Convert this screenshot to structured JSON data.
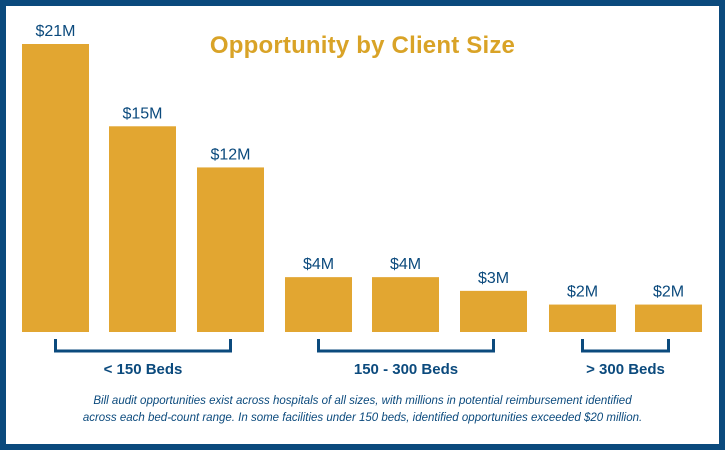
{
  "colors": {
    "frame": "#0b4a7d",
    "bar": "#e2a631",
    "title": "#d9a327",
    "text": "#0b4a7d"
  },
  "chart_data": {
    "type": "bar",
    "title": "Opportunity by Client Size",
    "xlabel": "",
    "ylabel": "",
    "unit": "$M",
    "ylim": [
      0,
      21
    ],
    "grid": false,
    "values": [
      21,
      15,
      12,
      4,
      4,
      3,
      2,
      2
    ],
    "value_labels": [
      "$21M",
      "$15M",
      "$12M",
      "$4M",
      "$4M",
      "$3M",
      "$2M",
      "$2M"
    ],
    "groups": [
      {
        "label": "< 150 Beds",
        "bars": [
          0,
          1,
          2
        ]
      },
      {
        "label": "150 - 300 Beds",
        "bars": [
          3,
          4,
          5
        ]
      },
      {
        "label": "> 300 Beds",
        "bars": [
          6,
          7
        ]
      }
    ]
  },
  "caption": {
    "line1": "Bill audit opportunities exist across hospitals of all sizes, with millions in potential reimbursement identified",
    "line2": "across each bed-count range. In some facilities under 150 beds, identified opportunities exceeded $20 million."
  }
}
